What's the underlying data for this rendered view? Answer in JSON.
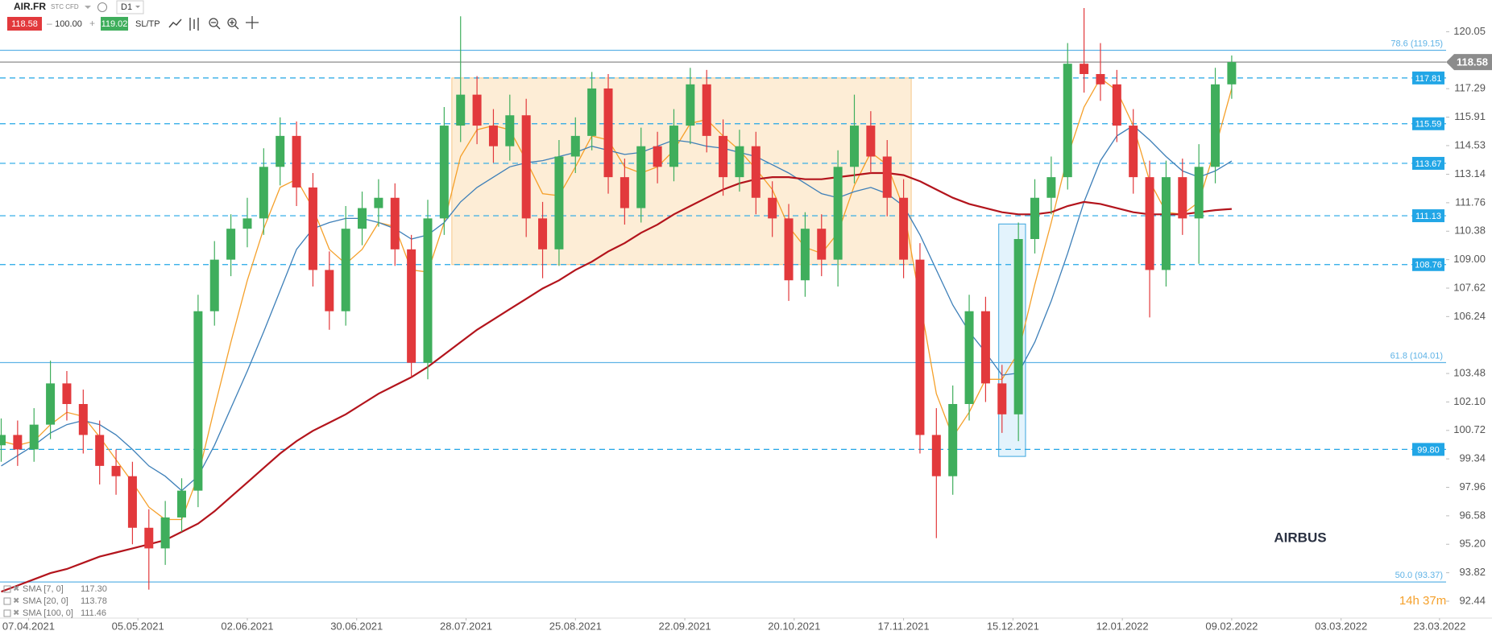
{
  "toolbar": {
    "symbol": "AIR.FR",
    "instrument": "STC CFD",
    "timeframe": "D1",
    "sell": "118.58",
    "volume": "100.00",
    "buy": "119.02",
    "sltp": "SL/TP"
  },
  "chart_data": {
    "type": "candlestick",
    "watermark": "AIRBUS",
    "timer": "14h 37m",
    "up_color": "#3fae5c",
    "down_color": "#e2393c",
    "xlim": [
      -5.22,
      259.2
    ],
    "ylim": [
      91.62,
      121.59
    ],
    "xticks": [
      {
        "value": 0,
        "label": "07.04.2021"
      },
      {
        "value": 20,
        "label": "05.05.2021"
      },
      {
        "value": 40,
        "label": "02.06.2021"
      },
      {
        "value": 60,
        "label": "30.06.2021"
      },
      {
        "value": 80,
        "label": "28.07.2021"
      },
      {
        "value": 100,
        "label": "25.08.2021"
      },
      {
        "value": 120,
        "label": "22.09.2021"
      },
      {
        "value": 140,
        "label": "20.10.2021"
      },
      {
        "value": 160,
        "label": "17.11.2021"
      },
      {
        "value": 180,
        "label": "15.12.2021"
      },
      {
        "value": 200,
        "label": "12.01.2022"
      },
      {
        "value": 220,
        "label": "09.02.2022"
      },
      {
        "value": 240,
        "label": "03.03.2022"
      },
      {
        "value": 258,
        "label": "23.03.2022"
      }
    ],
    "yticks": [
      120.05,
      117.29,
      115.91,
      114.53,
      113.14,
      111.76,
      110.38,
      {
        "value": 109,
        "label": "109.00"
      },
      107.62,
      106.24,
      103.48,
      {
        "value": 102.1,
        "label": "102.10"
      },
      100.72,
      99.34,
      97.96,
      96.58,
      {
        "value": 95.2,
        "label": "95.20"
      },
      93.82,
      92.44
    ],
    "candles": {
      "x": [
        -5,
        -2,
        1,
        4,
        7,
        10,
        13,
        16,
        19,
        22,
        25,
        28,
        31,
        34,
        37,
        40,
        43,
        46,
        49,
        52,
        55,
        58,
        61,
        64,
        67,
        70,
        73,
        76,
        79,
        82,
        85,
        88,
        91,
        94,
        97,
        100,
        103,
        106,
        109,
        112,
        115,
        118,
        121,
        124,
        127,
        130,
        133,
        136,
        139,
        142,
        145,
        148,
        151,
        154,
        157,
        160,
        163,
        166,
        169,
        172,
        175,
        178,
        181,
        184,
        187,
        190,
        193,
        196,
        199,
        202,
        205,
        208,
        211,
        214,
        217,
        220
      ],
      "open": [
        100.0,
        100.5,
        99.8,
        101.0,
        103.0,
        102.0,
        100.5,
        99.0,
        98.5,
        96.0,
        95.0,
        96.5,
        97.8,
        106.5,
        109.0,
        110.5,
        111.0,
        113.5,
        115.0,
        112.5,
        108.5,
        106.5,
        110.5,
        111.5,
        112.0,
        109.5,
        104.0,
        111.0,
        115.5,
        117.0,
        115.5,
        114.5,
        116.0,
        111.0,
        109.5,
        114.0,
        115.0,
        117.3,
        113.0,
        111.5,
        114.5,
        113.5,
        115.5,
        117.5,
        115.0,
        113.0,
        114.5,
        112.0,
        111.0,
        108.0,
        110.5,
        109.0,
        113.5,
        115.5,
        114.0,
        112.0,
        109.0,
        100.5,
        98.5,
        102.0,
        106.5,
        103.0,
        101.5,
        110.0,
        112.0,
        113.0,
        118.5,
        118.0,
        117.5,
        115.5,
        113.0,
        108.5,
        113.0,
        111.0,
        113.5,
        117.5
      ],
      "high": [
        101.3,
        101.2,
        101.8,
        104.1,
        103.6,
        102.7,
        101.2,
        99.8,
        99.2,
        96.9,
        97.3,
        98.4,
        107.3,
        109.9,
        111.2,
        112.0,
        114.4,
        115.9,
        115.7,
        113.2,
        109.4,
        111.6,
        112.3,
        112.9,
        112.7,
        110.2,
        111.9,
        116.4,
        120.8,
        117.9,
        116.3,
        117.0,
        116.8,
        111.8,
        114.8,
        115.9,
        118.1,
        118.0,
        113.9,
        115.4,
        115.2,
        116.3,
        118.3,
        118.2,
        115.8,
        115.3,
        115.2,
        112.8,
        111.7,
        111.3,
        111.2,
        114.3,
        117.0,
        116.2,
        114.8,
        112.9,
        109.8,
        101.8,
        102.9,
        107.3,
        107.2,
        103.9,
        110.8,
        112.9,
        114.0,
        119.5,
        121.2,
        119.5,
        118.2,
        116.3,
        113.8,
        113.8,
        113.9,
        114.6,
        118.3,
        118.9
      ],
      "low": [
        99.2,
        99.0,
        99.2,
        100.3,
        101.2,
        99.6,
        98.1,
        97.6,
        95.2,
        93.0,
        94.2,
        95.8,
        97.0,
        105.8,
        108.2,
        109.6,
        110.2,
        112.6,
        111.6,
        107.7,
        105.6,
        105.8,
        109.7,
        110.6,
        108.7,
        103.3,
        103.2,
        110.2,
        114.7,
        114.6,
        113.7,
        113.8,
        110.1,
        108.1,
        108.7,
        113.2,
        114.3,
        112.2,
        110.7,
        110.8,
        112.7,
        112.8,
        114.6,
        114.2,
        112.1,
        112.3,
        111.2,
        110.1,
        107.0,
        107.2,
        108.2,
        107.7,
        112.7,
        113.2,
        111.1,
        108.1,
        99.6,
        95.5,
        97.6,
        101.2,
        102.1,
        100.6,
        100.2,
        109.3,
        111.2,
        112.4,
        117.1,
        116.7,
        114.7,
        112.2,
        106.2,
        107.7,
        110.2,
        108.8,
        112.7,
        116.8
      ],
      "close": [
        100.5,
        99.8,
        101.0,
        103.0,
        102.0,
        100.5,
        99.0,
        98.5,
        96.0,
        95.0,
        96.5,
        97.8,
        106.5,
        109.0,
        110.5,
        111.0,
        113.5,
        115.0,
        112.5,
        108.5,
        106.5,
        110.5,
        111.5,
        112.0,
        109.5,
        104.0,
        111.0,
        115.5,
        117.0,
        115.5,
        114.5,
        116.0,
        111.0,
        109.5,
        114.0,
        115.0,
        117.3,
        113.0,
        111.5,
        114.5,
        113.5,
        115.5,
        117.5,
        115.0,
        113.0,
        114.5,
        112.0,
        111.0,
        108.0,
        110.5,
        109.0,
        113.5,
        115.5,
        114.0,
        112.0,
        109.0,
        100.5,
        98.5,
        102.0,
        106.5,
        103.0,
        101.5,
        110.0,
        112.0,
        113.0,
        118.5,
        118.0,
        117.5,
        115.5,
        113.0,
        108.5,
        113.0,
        111.0,
        113.5,
        117.5,
        118.58
      ]
    },
    "series": [
      {
        "name": "SMA [7, 0]",
        "last_label": "117.30",
        "color": "#f5a02a",
        "values": [
          100.2,
          100.0,
          100.2,
          101.0,
          101.6,
          101.4,
          100.4,
          99.3,
          98.2,
          97.0,
          96.4,
          96.4,
          98.5,
          101.8,
          105.0,
          108.0,
          110.5,
          112.5,
          112.9,
          111.5,
          109.5,
          108.8,
          109.5,
          110.8,
          110.6,
          108.5,
          108.4,
          110.8,
          114.0,
          115.3,
          115.5,
          115.3,
          113.8,
          112.2,
          112.1,
          113.5,
          115.0,
          114.8,
          113.5,
          113.2,
          113.5,
          114.3,
          115.6,
          115.8,
          115.0,
          114.3,
          113.4,
          112.4,
          110.6,
          109.6,
          109.3,
          110.3,
          112.6,
          114.2,
          113.6,
          111.5,
          107.0,
          102.5,
          100.4,
          101.6,
          103.2,
          103.2,
          104.5,
          107.8,
          110.8,
          114.0,
          116.4,
          117.8,
          117.2,
          115.5,
          112.8,
          111.3,
          111.2,
          111.8,
          114.4,
          117.3
        ]
      },
      {
        "name": "SMA [20, 0]",
        "last_label": "113.78",
        "color": "#3d7fb8",
        "values": [
          99.0,
          99.5,
          100.0,
          100.6,
          101.0,
          101.2,
          101.0,
          100.5,
          99.8,
          99.0,
          98.5,
          97.8,
          98.5,
          100.0,
          101.8,
          103.6,
          105.5,
          107.5,
          109.5,
          110.5,
          110.8,
          111.0,
          111.0,
          110.8,
          110.5,
          110.0,
          110.2,
          110.8,
          111.8,
          112.5,
          113.0,
          113.5,
          113.7,
          113.8,
          114.0,
          114.2,
          114.5,
          114.3,
          114.1,
          114.2,
          114.5,
          114.8,
          114.7,
          114.5,
          114.4,
          114.2,
          114.0,
          113.6,
          113.2,
          112.7,
          112.2,
          112.0,
          112.3,
          112.5,
          112.2,
          111.6,
          110.2,
          108.5,
          106.8,
          105.5,
          104.5,
          103.4,
          103.5,
          105.0,
          107.0,
          109.3,
          111.8,
          113.8,
          115.0,
          115.5,
          114.8,
          114.0,
          113.3,
          113.0,
          113.3,
          113.78
        ]
      },
      {
        "name": "SMA [100, 0]",
        "last_label": "111.46",
        "color": "#b3141c",
        "values": [
          92.9,
          93.2,
          93.5,
          93.8,
          94.0,
          94.3,
          94.6,
          94.8,
          95.0,
          95.2,
          95.4,
          95.8,
          96.2,
          96.8,
          97.5,
          98.2,
          98.9,
          99.6,
          100.2,
          100.7,
          101.1,
          101.5,
          102.0,
          102.5,
          102.9,
          103.3,
          103.8,
          104.4,
          105.0,
          105.6,
          106.1,
          106.6,
          107.1,
          107.6,
          108.0,
          108.5,
          108.9,
          109.4,
          109.8,
          110.3,
          110.7,
          111.2,
          111.6,
          112.0,
          112.4,
          112.7,
          112.9,
          113.0,
          113.0,
          112.9,
          112.9,
          113.0,
          113.1,
          113.2,
          113.2,
          113.1,
          112.8,
          112.4,
          112.0,
          111.7,
          111.5,
          111.3,
          111.2,
          111.2,
          111.3,
          111.6,
          111.8,
          111.7,
          111.5,
          111.3,
          111.2,
          111.2,
          111.2,
          111.3,
          111.4,
          111.46
        ]
      }
    ],
    "dashed_levels": [
      117.81,
      115.59,
      113.67,
      111.13,
      108.76,
      {
        "value": 99.8,
        "label": "99.80"
      }
    ],
    "level_color": "#22a6e6",
    "fib_levels": [
      {
        "value": 119.15,
        "label": "78.6 (119.15)"
      },
      {
        "value": 104.01,
        "label": "61.8 (104.01)"
      },
      {
        "value": 93.37,
        "label": "50.0 (93.37)"
      }
    ],
    "fib_color": "#5fb3e6",
    "last_price": 118.58,
    "zones": [
      {
        "x": [
          77.4,
          161.4
        ],
        "y": [
          108.76,
          117.81
        ],
        "color": "#fde8cc",
        "border": "#f6c889"
      },
      {
        "x": [
          177.4,
          182.3
        ],
        "y": [
          99.46,
          110.73
        ],
        "color": "#dcf0fb",
        "border": "#3aa5de"
      }
    ]
  }
}
